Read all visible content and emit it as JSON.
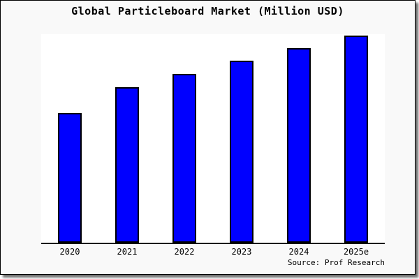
{
  "window": {
    "page_background": "#ffffff",
    "card_background": "#f9f9f9",
    "card_border_color": "#000000"
  },
  "chart_data": {
    "type": "bar",
    "title": "Global Particleboard Market (Million USD)",
    "categories": [
      "2020",
      "2021",
      "2022",
      "2023",
      "2024",
      "2025e"
    ],
    "values_relative": [
      0.623,
      0.747,
      0.81,
      0.873,
      0.933,
      0.993
    ],
    "ylim": [
      0,
      1
    ],
    "xlabel": "",
    "ylabel": "",
    "y_axis_ticks_shown": false,
    "data_labels_shown": false,
    "grid": false,
    "legend": false,
    "source_note": "Source: Prof Research",
    "bar_color": "#0000ff",
    "bar_border_color": "#000000",
    "plot_background": "#ffffff",
    "axis_color": "#000000",
    "note": "No y-axis ticks or numeric data labels are visible in the chart; values are estimated relative bar heights as a fraction of the plot height (2025e is the tallest, nearly full height)."
  }
}
